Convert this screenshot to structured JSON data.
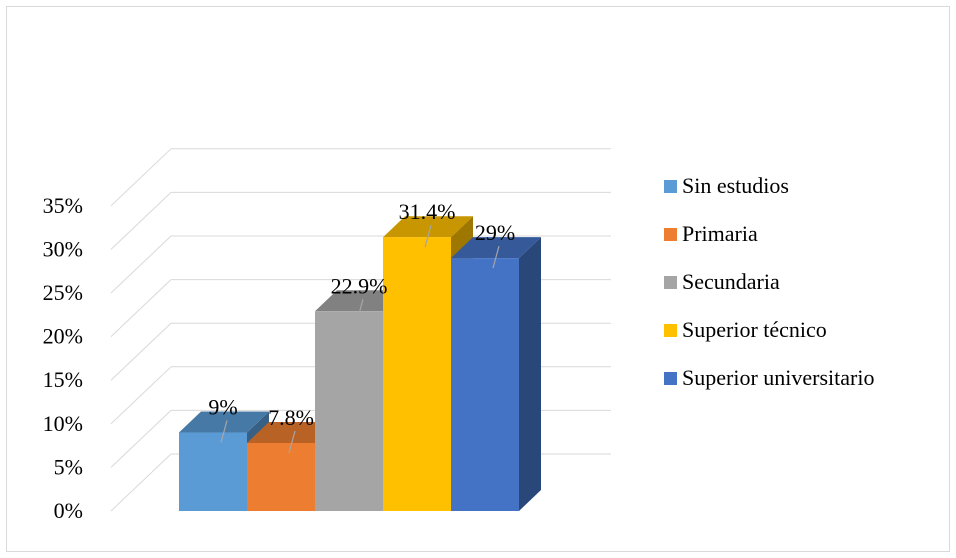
{
  "chart_data": {
    "type": "bar",
    "subtype": "3d-clustered-column",
    "categories": [
      "Sin estudios",
      "Primaria",
      "Secundaria",
      "Superior técnico",
      "Superior universitario"
    ],
    "series": [
      {
        "name": "Sin estudios",
        "value": 9,
        "label": "9%",
        "color": "#5b9bd5"
      },
      {
        "name": "Primaria",
        "value": 7.8,
        "label": "7.8%",
        "color": "#ed7d31"
      },
      {
        "name": "Secundaria",
        "value": 22.9,
        "label": "22.9%",
        "color": "#a5a5a5"
      },
      {
        "name": "Superior técnico",
        "value": 31.4,
        "label": "31.4%",
        "color": "#ffc000"
      },
      {
        "name": "Superior universitario",
        "value": 29,
        "label": "29%",
        "color": "#4472c4"
      }
    ],
    "y_ticks": [
      "0%",
      "5%",
      "10%",
      "15%",
      "20%",
      "25%",
      "30%",
      "35%"
    ],
    "ylim": [
      0,
      35
    ],
    "y_unit": "%",
    "grid": true,
    "legend_position": "right",
    "title": "",
    "xlabel": "",
    "ylabel": ""
  }
}
